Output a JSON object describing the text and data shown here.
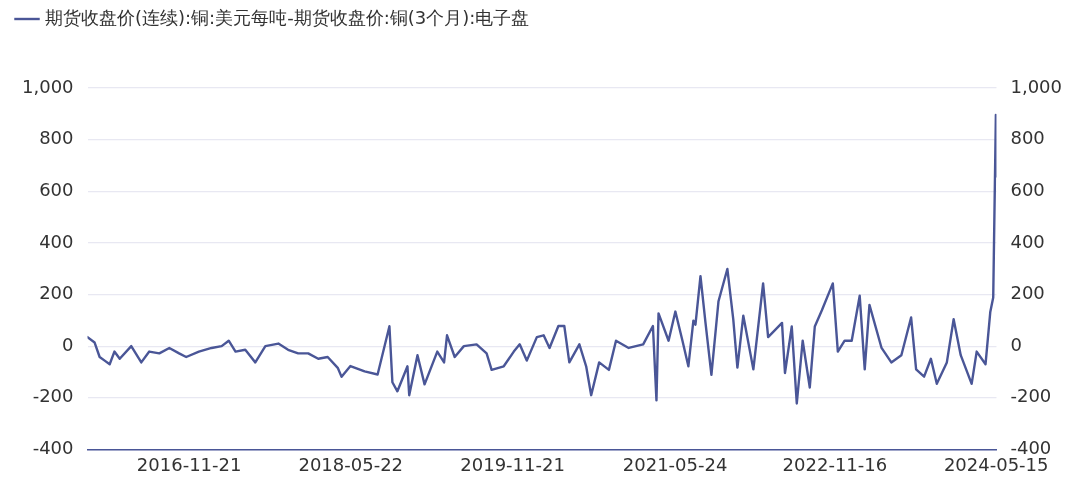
{
  "chart_data": {
    "type": "line",
    "legend": "top left",
    "grid": "y",
    "marker": "none",
    "line_style": "solid",
    "xlim": [
      "2015-12-13",
      "2024-05-16"
    ],
    "xticks": [
      "2016-11-21",
      "2018-05-22",
      "2019-11-21",
      "2021-05-24",
      "2022-11-16",
      "2024-05-15"
    ],
    "ylim": [
      -400,
      1000
    ],
    "yticks": [
      -400,
      -200,
      0,
      200,
      400,
      600,
      800,
      {
        "value": 1000,
        "label": "1,000"
      }
    ],
    "y2lim": [
      -400,
      1000
    ],
    "y2ticks": [
      -400,
      -200,
      0,
      200,
      400,
      600,
      800,
      {
        "value": 1000,
        "label": "1,000"
      }
    ],
    "series": [
      {
        "name": "期货收盘价(连续):铜:美元每吨-期货收盘价:铜(3个月):电子盘",
        "color": "#4a5697",
        "x": [
          "2015-12-13",
          "2016-01-06",
          "2016-01-23",
          "2016-02-09",
          "2016-02-26",
          "2016-03-13",
          "2016-03-31",
          "2016-05-09",
          "2016-06-12",
          "2016-07-09",
          "2016-08-12",
          "2016-09-15",
          "2016-10-18",
          "2016-11-11",
          "2016-12-24",
          "2017-02-05",
          "2017-03-11",
          "2017-04-04",
          "2017-04-27",
          "2017-05-30",
          "2017-07-03",
          "2017-08-06",
          "2017-09-19",
          "2017-10-22",
          "2017-11-25",
          "2017-12-29",
          "2018-02-01",
          "2018-03-05",
          "2018-04-08",
          "2018-04-21",
          "2018-05-21",
          "2018-07-08",
          "2018-08-21",
          "2018-09-30",
          "2018-10-10",
          "2018-10-27",
          "2018-11-30",
          "2018-12-06",
          "2019-01-03",
          "2019-01-27",
          "2019-03-11",
          "2019-04-03",
          "2019-04-13",
          "2019-05-09",
          "2019-06-09",
          "2019-07-22",
          "2019-08-25",
          "2019-09-11",
          "2019-10-22",
          "2019-11-25",
          "2019-12-15",
          "2020-01-08",
          "2020-02-11",
          "2020-03-05",
          "2020-03-25",
          "2020-04-24",
          "2020-05-14",
          "2020-05-31",
          "2020-07-04",
          "2020-07-27",
          "2020-08-13",
          "2020-09-09",
          "2020-10-12",
          "2020-11-05",
          "2020-12-18",
          "2021-02-05",
          "2021-03-10",
          "2021-03-22",
          "2021-03-29",
          "2021-05-02",
          "2021-05-25",
          "2021-06-18",
          "2021-07-08",
          "2021-07-25",
          "2021-08-01",
          "2021-08-18",
          "2021-09-04",
          "2021-09-24",
          "2021-10-18",
          "2021-11-17",
          "2021-12-07",
          "2021-12-21",
          "2022-01-10",
          "2022-02-13",
          "2022-03-18",
          "2022-04-04",
          "2022-05-21",
          "2022-05-31",
          "2022-06-23",
          "2022-07-10",
          "2022-07-30",
          "2022-08-23",
          "2022-09-09",
          "2022-10-03",
          "2022-11-09",
          "2022-11-26",
          "2022-12-19",
          "2023-01-12",
          "2023-02-08",
          "2023-02-25",
          "2023-03-13",
          "2023-04-23",
          "2023-05-26",
          "2023-06-29",
          "2023-08-01",
          "2023-08-18",
          "2023-09-14",
          "2023-10-07",
          "2023-10-27",
          "2023-11-30",
          "2023-12-23",
          "2024-01-16",
          "2024-02-22",
          "2024-03-10",
          "2024-04-09",
          "2024-04-25",
          "2024-05-05",
          "2024-05-14",
          "2024-05-16"
        ],
        "values": [
          35,
          14,
          -42,
          -56,
          -70,
          -21,
          -49,
          0,
          -63,
          -21,
          -28,
          -7,
          -28,
          -42,
          -21,
          -7,
          0,
          21,
          -21,
          -14,
          -63,
          0,
          10,
          -14,
          -28,
          -28,
          -49,
          -42,
          -84,
          -119,
          -77,
          -98,
          -110,
          77,
          -140,
          -175,
          -78,
          -190,
          -35,
          -148,
          -21,
          -63,
          42,
          -42,
          0,
          7,
          -28,
          -92,
          -78,
          -21,
          7,
          -56,
          35,
          42,
          -7,
          78,
          78,
          -63,
          7,
          -78,
          -190,
          -63,
          -92,
          21,
          -7,
          7,
          78,
          -210,
          127,
          21,
          134,
          21,
          -78,
          99,
          83,
          271,
          90,
          -111,
          174,
          299,
          104,
          -83,
          118,
          -90,
          243,
          35,
          90,
          -104,
          76,
          -222,
          21,
          -160,
          76,
          139,
          243,
          -21,
          21,
          21,
          195,
          -90,
          160,
          -7,
          -63,
          -35,
          111,
          -90,
          -118,
          -49,
          -146,
          -63,
          104,
          -35,
          -146,
          -21,
          -70,
          132,
          188,
          896,
          658
        ]
      }
    ]
  }
}
